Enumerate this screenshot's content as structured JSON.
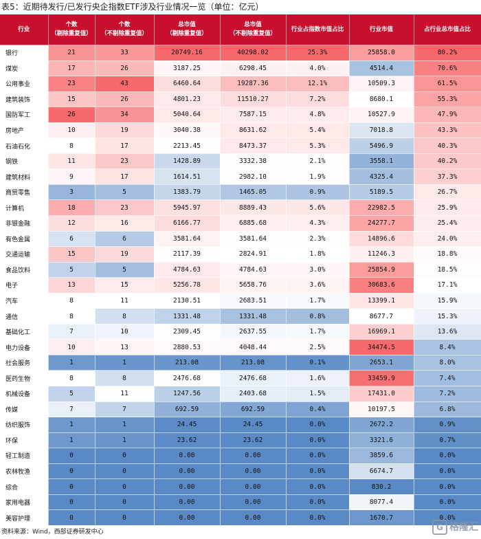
{
  "title": "表5：近期待发行/已发行央企指数ETF涉及行业情况一览（单位：亿元）",
  "footer": "资料来源：Wind，西部证券研发中心",
  "watermark": "格隆汇",
  "columns": [
    "行业",
    "个数\n（剔除重复值）",
    "个数\n（不剔除重复值）",
    "总市值\n（剔除重复值）",
    "总市值\n（不剔除重复值）",
    "行业占指数市值占比",
    "行业市值",
    "占行业总市值占比"
  ],
  "rows": [
    [
      "银行",
      "21",
      "33",
      "20749.16",
      "40298.02",
      "25.3%",
      "25858.0",
      "80.2%"
    ],
    [
      "煤炭",
      "17",
      "26",
      "3187.25",
      "6298.45",
      "4.0%",
      "4514.4",
      "70.6%"
    ],
    [
      "公用事业",
      "23",
      "43",
      "6460.64",
      "19287.36",
      "12.1%",
      "10509.3",
      "61.5%"
    ],
    [
      "建筑装饰",
      "15",
      "26",
      "4801.23",
      "11510.27",
      "7.2%",
      "8680.1",
      "55.3%"
    ],
    [
      "国防军工",
      "26",
      "34",
      "5040.64",
      "7587.15",
      "4.8%",
      "10527.9",
      "47.9%"
    ],
    [
      "房地产",
      "10",
      "19",
      "3040.38",
      "8631.62",
      "5.4%",
      "7018.8",
      "43.3%"
    ],
    [
      "石油石化",
      "8",
      "17",
      "2213.45",
      "8473.37",
      "5.3%",
      "5496.9",
      "40.3%"
    ],
    [
      "钢铁",
      "11",
      "23",
      "1428.89",
      "3332.38",
      "2.1%",
      "3558.1",
      "40.2%"
    ],
    [
      "建筑材料",
      "9",
      "17",
      "1614.51",
      "2982.10",
      "1.9%",
      "4325.4",
      "37.3%"
    ],
    [
      "商贸零售",
      "3",
      "5",
      "1383.79",
      "1465.05",
      "0.9%",
      "5189.5",
      "26.7%"
    ],
    [
      "计算机",
      "18",
      "23",
      "5945.97",
      "8889.43",
      "5.6%",
      "22982.5",
      "25.9%"
    ],
    [
      "非银金融",
      "12",
      "16",
      "6166.77",
      "6885.68",
      "4.3%",
      "24277.7",
      "25.4%"
    ],
    [
      "有色金属",
      "6",
      "6",
      "3581.64",
      "3581.64",
      "2.3%",
      "14896.6",
      "24.0%"
    ],
    [
      "交通运输",
      "15",
      "19",
      "2117.39",
      "2824.91",
      "1.8%",
      "11246.3",
      "18.8%"
    ],
    [
      "食品饮料",
      "5",
      "5",
      "4784.63",
      "4784.63",
      "3.0%",
      "25854.9",
      "18.5%"
    ],
    [
      "电子",
      "13",
      "15",
      "5256.78",
      "5658.76",
      "3.6%",
      "30683.6",
      "17.1%"
    ],
    [
      "汽车",
      "8",
      "11",
      "2130.51",
      "2683.51",
      "1.7%",
      "13399.1",
      "15.9%"
    ],
    [
      "通信",
      "8",
      "8",
      "1331.48",
      "1331.48",
      "0.8%",
      "8677.7",
      "15.3%"
    ],
    [
      "基础化工",
      "7",
      "10",
      "2309.45",
      "2637.55",
      "1.7%",
      "16969.1",
      "13.6%"
    ],
    [
      "电力设备",
      "10",
      "13",
      "2880.53",
      "4048.44",
      "2.5%",
      "34474.5",
      "8.4%"
    ],
    [
      "社会服务",
      "1",
      "1",
      "213.08",
      "213.08",
      "0.1%",
      "2653.1",
      "8.0%"
    ],
    [
      "医药生物",
      "8",
      "8",
      "2476.68",
      "2476.68",
      "1.6%",
      "33459.9",
      "7.4%"
    ],
    [
      "机械设备",
      "5",
      "11",
      "1247.56",
      "2403.68",
      "1.5%",
      "17431.0",
      "7.2%"
    ],
    [
      "传媒",
      "7",
      "7",
      "692.59",
      "692.59",
      "0.4%",
      "10197.5",
      "6.8%"
    ],
    [
      "纺织服饰",
      "1",
      "1",
      "24.45",
      "24.45",
      "0.0%",
      "2672.2",
      "0.9%"
    ],
    [
      "环保",
      "1",
      "1",
      "23.62",
      "23.62",
      "0.0%",
      "3321.6",
      "0.7%"
    ],
    [
      "轻工制造",
      "0",
      "0",
      "0.00",
      "0.00",
      "0.0%",
      "3859.6",
      "0.0%"
    ],
    [
      "农林牧渔",
      "0",
      "0",
      "0.00",
      "0.00",
      "0.0%",
      "6674.7",
      "0.0%"
    ],
    [
      "综合",
      "0",
      "0",
      "0.00",
      "0.00",
      "0.0%",
      "830.2",
      "0.0%"
    ],
    [
      "家用电器",
      "0",
      "0",
      "0.00",
      "0.00",
      "0.0%",
      "8077.4",
      "0.0%"
    ],
    [
      "美容护理",
      "0",
      "0",
      "0.00",
      "0.00",
      "0.0%",
      "1670.7",
      "0.0%"
    ]
  ],
  "colors": {
    "header_bg": "#c8102e",
    "header_text": "#ffffff",
    "scale_high": "#f8696b",
    "scale_mid": "#ffffff",
    "scale_low": "#5a8ac6"
  }
}
